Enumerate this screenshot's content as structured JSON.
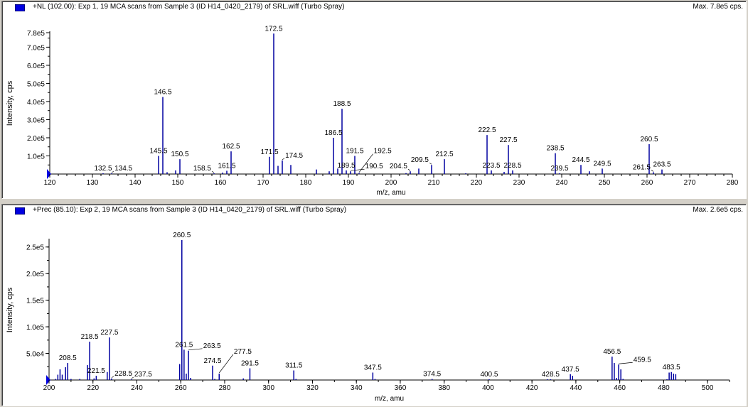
{
  "chart_data": [
    {
      "type": "bar",
      "title": "+NL (102.00): Exp 1, 19 MCA scans from Sample 3 (ID H14_0420_2179) of SRL.wiff (Turbo Spray)",
      "max_label": "Max. 7.8e5 cps.",
      "xlabel": "m/z, amu",
      "ylabel": "Intensity, cps",
      "xlim": [
        120,
        280
      ],
      "ylim": [
        0,
        780000
      ],
      "xticks": [
        "120",
        "130",
        "140",
        "150",
        "160",
        "170",
        "180",
        "190",
        "200",
        "210",
        "220",
        "230",
        "240",
        "250",
        "260",
        "270",
        "280"
      ],
      "yticks": [
        {
          "v": 100000,
          "label": "1.0e5"
        },
        {
          "v": 200000,
          "label": "2.0e5"
        },
        {
          "v": 300000,
          "label": "3.0e5"
        },
        {
          "v": 400000,
          "label": "4.0e5"
        },
        {
          "v": 500000,
          "label": "5.0e5"
        },
        {
          "v": 600000,
          "label": "6.0e5"
        },
        {
          "v": 700000,
          "label": "7.0e5"
        },
        {
          "v": 780000,
          "label": "7.8e5"
        }
      ],
      "color": "#0000a0",
      "peaks": [
        {
          "mz": 132.5,
          "i": 2000,
          "label": "132.5"
        },
        {
          "mz": 134.5,
          "i": 2000,
          "label": "134.5"
        },
        {
          "mz": 145.5,
          "i": 100000,
          "label": "145.5"
        },
        {
          "mz": 146.5,
          "i": 425000,
          "label": "146.5"
        },
        {
          "mz": 147.5,
          "i": 10000
        },
        {
          "mz": 149.5,
          "i": 20000
        },
        {
          "mz": 150.5,
          "i": 82000,
          "label": "150.5"
        },
        {
          "mz": 158.5,
          "i": 2000,
          "label": "158.5"
        },
        {
          "mz": 160.5,
          "i": 8000
        },
        {
          "mz": 161.5,
          "i": 18000,
          "label": "161.5"
        },
        {
          "mz": 162.5,
          "i": 125000,
          "label": "162.5"
        },
        {
          "mz": 171.5,
          "i": 95000,
          "label": "171.5"
        },
        {
          "mz": 172.5,
          "i": 775000,
          "label": "172.5"
        },
        {
          "mz": 173.5,
          "i": 45000
        },
        {
          "mz": 174.5,
          "i": 75000,
          "label": "174.5"
        },
        {
          "mz": 176.5,
          "i": 50000
        },
        {
          "mz": 182.5,
          "i": 25000
        },
        {
          "mz": 185.5,
          "i": 15000
        },
        {
          "mz": 186.5,
          "i": 200000,
          "label": "186.5"
        },
        {
          "mz": 187.5,
          "i": 30000
        },
        {
          "mz": 188.5,
          "i": 360000,
          "label": "188.5"
        },
        {
          "mz": 189.5,
          "i": 20000,
          "label": "189.5"
        },
        {
          "mz": 190.5,
          "i": 15000,
          "label": "190.5"
        },
        {
          "mz": 191.5,
          "i": 100000,
          "label": "191.5"
        },
        {
          "mz": 192.5,
          "i": 5000,
          "label": "192.5"
        },
        {
          "mz": 203.5,
          "i": 5000
        },
        {
          "mz": 204.5,
          "i": 15000,
          "label": "204.5"
        },
        {
          "mz": 206.5,
          "i": 30000
        },
        {
          "mz": 209.5,
          "i": 50000,
          "label": "209.5"
        },
        {
          "mz": 212.5,
          "i": 82000,
          "label": "212.5"
        },
        {
          "mz": 217.5,
          "i": 2000
        },
        {
          "mz": 222.5,
          "i": 215000,
          "label": "222.5"
        },
        {
          "mz": 223.5,
          "i": 20000,
          "label": "223.5"
        },
        {
          "mz": 226.5,
          "i": 12000
        },
        {
          "mz": 227.5,
          "i": 160000,
          "label": "227.5"
        },
        {
          "mz": 228.5,
          "i": 20000,
          "label": "228.5"
        },
        {
          "mz": 238.5,
          "i": 115000,
          "label": "238.5"
        },
        {
          "mz": 239.5,
          "i": 2000,
          "label": "239.5"
        },
        {
          "mz": 244.5,
          "i": 50000,
          "label": "244.5"
        },
        {
          "mz": 246.5,
          "i": 15000
        },
        {
          "mz": 249.5,
          "i": 30000,
          "label": "249.5"
        },
        {
          "mz": 260.5,
          "i": 165000,
          "label": "260.5"
        },
        {
          "mz": 261.5,
          "i": 10000,
          "label": "261.5"
        },
        {
          "mz": 263.5,
          "i": 25000,
          "label": "263.5"
        }
      ]
    },
    {
      "type": "bar",
      "title": "+Prec (85.10): Exp 2, 19 MCA scans from Sample 3 (ID H14_0420_2179) of SRL.wiff (Turbo Spray)",
      "max_label": "Max. 2.6e5 cps.",
      "xlabel": "m/z, amu",
      "ylabel": "Intensity, cps",
      "xlim": [
        200,
        510
      ],
      "ylim": [
        0,
        263000
      ],
      "xticks": [
        "200",
        "220",
        "240",
        "260",
        "280",
        "300",
        "320",
        "340",
        "360",
        "380",
        "400",
        "420",
        "440",
        "460",
        "480",
        "500"
      ],
      "yticks": [
        {
          "v": 50000,
          "label": "5.0e4"
        },
        {
          "v": 100000,
          "label": "1.0e5"
        },
        {
          "v": 150000,
          "label": "1.5e5"
        },
        {
          "v": 200000,
          "label": "2.0e5"
        },
        {
          "v": 250000,
          "label": "2.5e5"
        }
      ],
      "color": "#0000a0",
      "peaks": [
        {
          "mz": 203,
          "i": 2000
        },
        {
          "mz": 204,
          "i": 10000
        },
        {
          "mz": 205,
          "i": 20000
        },
        {
          "mz": 206,
          "i": 10000
        },
        {
          "mz": 207.5,
          "i": 24000
        },
        {
          "mz": 208.5,
          "i": 32000,
          "label": "208.5"
        },
        {
          "mz": 210,
          "i": 2000
        },
        {
          "mz": 214,
          "i": 2000
        },
        {
          "mz": 217.5,
          "i": 28000
        },
        {
          "mz": 218.5,
          "i": 72000,
          "label": "218.5"
        },
        {
          "mz": 220.5,
          "i": 3000
        },
        {
          "mz": 221.5,
          "i": 8000,
          "label": "221.5"
        },
        {
          "mz": 226.5,
          "i": 15000
        },
        {
          "mz": 227.5,
          "i": 80000,
          "label": "227.5"
        },
        {
          "mz": 228.5,
          "i": 3000,
          "label": "228.5"
        },
        {
          "mz": 237.5,
          "i": 1000,
          "label": "237.5"
        },
        {
          "mz": 259.5,
          "i": 30000
        },
        {
          "mz": 260.5,
          "i": 263000,
          "label": "260.5"
        },
        {
          "mz": 261.5,
          "i": 57000,
          "label": "261.5"
        },
        {
          "mz": 262.5,
          "i": 12000
        },
        {
          "mz": 263.5,
          "i": 55000,
          "label": "263.5"
        },
        {
          "mz": 264.5,
          "i": 4000
        },
        {
          "mz": 274.5,
          "i": 27000,
          "label": "274.5"
        },
        {
          "mz": 275.5,
          "i": 2000
        },
        {
          "mz": 277.5,
          "i": 12000,
          "label": "277.5"
        },
        {
          "mz": 288.5,
          "i": 3000
        },
        {
          "mz": 291.5,
          "i": 22000,
          "label": "291.5"
        },
        {
          "mz": 311.5,
          "i": 18000,
          "label": "311.5"
        },
        {
          "mz": 312.5,
          "i": 2000
        },
        {
          "mz": 347.5,
          "i": 14000,
          "label": "347.5"
        },
        {
          "mz": 348.5,
          "i": 2000
        },
        {
          "mz": 374.5,
          "i": 2000,
          "label": "374.5"
        },
        {
          "mz": 400.5,
          "i": 1000,
          "label": "400.5"
        },
        {
          "mz": 427,
          "i": 1000
        },
        {
          "mz": 428.5,
          "i": 1500,
          "label": "428.5"
        },
        {
          "mz": 437.5,
          "i": 11000,
          "label": "437.5"
        },
        {
          "mz": 438.5,
          "i": 8000
        },
        {
          "mz": 456.5,
          "i": 44000,
          "label": "456.5"
        },
        {
          "mz": 457.5,
          "i": 32000
        },
        {
          "mz": 458.5,
          "i": 4000
        },
        {
          "mz": 459.5,
          "i": 29000,
          "label": "459.5"
        },
        {
          "mz": 460.5,
          "i": 20000
        },
        {
          "mz": 461.5,
          "i": 2000
        },
        {
          "mz": 481.5,
          "i": 1000
        },
        {
          "mz": 482.5,
          "i": 14000
        },
        {
          "mz": 483.5,
          "i": 15000,
          "label": "483.5"
        },
        {
          "mz": 484.5,
          "i": 12000
        },
        {
          "mz": 485.5,
          "i": 11000
        }
      ]
    }
  ]
}
